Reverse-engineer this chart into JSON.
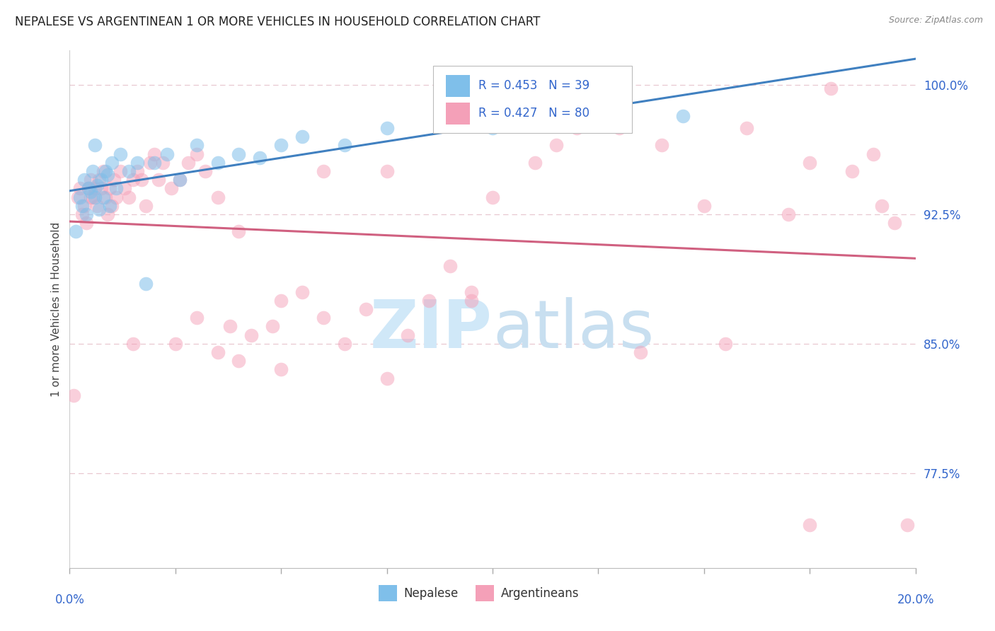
{
  "title": "NEPALESE VS ARGENTINEAN 1 OR MORE VEHICLES IN HOUSEHOLD CORRELATION CHART",
  "source": "Source: ZipAtlas.com",
  "ylabel": "1 or more Vehicles in Household",
  "xlim": [
    0.0,
    20.0
  ],
  "ylim": [
    72.0,
    102.0
  ],
  "yticks": [
    77.5,
    85.0,
    92.5,
    100.0
  ],
  "ytick_labels": [
    "77.5%",
    "85.0%",
    "92.5%",
    "100.0%"
  ],
  "nepalese_R": 0.453,
  "nepalese_N": 39,
  "argentinean_R": 0.427,
  "argentinean_N": 80,
  "nepalese_color": "#7fbfea",
  "argentinean_color": "#f4a0b8",
  "nepalese_line_color": "#4080c0",
  "argentinean_line_color": "#d06080",
  "text_color": "#3366cc",
  "watermark_zip_color": "#d0e8f8",
  "watermark_atlas_color": "#c8dff0",
  "nepalese_x": [
    0.15,
    0.25,
    0.3,
    0.35,
    0.4,
    0.45,
    0.5,
    0.55,
    0.6,
    0.6,
    0.65,
    0.7,
    0.75,
    0.8,
    0.85,
    0.9,
    0.95,
    1.0,
    1.1,
    1.2,
    1.4,
    1.6,
    1.8,
    2.0,
    2.3,
    2.6,
    3.0,
    3.5,
    4.0,
    4.5,
    5.0,
    5.5,
    6.5,
    7.5,
    9.0,
    10.0,
    11.5,
    13.0,
    14.5
  ],
  "nepalese_y": [
    91.5,
    93.5,
    93.0,
    94.5,
    92.5,
    94.0,
    93.8,
    95.0,
    93.5,
    96.5,
    94.2,
    92.8,
    94.5,
    93.5,
    95.0,
    94.8,
    93.0,
    95.5,
    94.0,
    96.0,
    95.0,
    95.5,
    88.5,
    95.5,
    96.0,
    94.5,
    96.5,
    95.5,
    96.0,
    95.8,
    96.5,
    97.0,
    96.5,
    97.5,
    97.8,
    97.5,
    98.0,
    98.5,
    98.2
  ],
  "argentinean_x": [
    0.1,
    0.2,
    0.25,
    0.3,
    0.35,
    0.4,
    0.45,
    0.5,
    0.5,
    0.55,
    0.6,
    0.65,
    0.7,
    0.75,
    0.8,
    0.85,
    0.9,
    0.95,
    1.0,
    1.05,
    1.1,
    1.2,
    1.3,
    1.4,
    1.5,
    1.6,
    1.7,
    1.8,
    1.9,
    2.0,
    2.1,
    2.2,
    2.4,
    2.6,
    2.8,
    3.0,
    3.2,
    3.5,
    3.8,
    4.0,
    4.3,
    4.8,
    5.0,
    5.5,
    6.0,
    6.5,
    7.0,
    7.5,
    8.0,
    8.5,
    9.0,
    9.5,
    10.0,
    11.0,
    12.0,
    13.0,
    14.0,
    15.0,
    16.0,
    17.0,
    17.5,
    18.0,
    18.5,
    19.0,
    19.2,
    19.5,
    1.5,
    2.5,
    3.0,
    3.5,
    4.0,
    5.0,
    6.0,
    7.5,
    9.5,
    11.5,
    13.5,
    15.5,
    17.5,
    19.8
  ],
  "argentinean_y": [
    82.0,
    93.5,
    94.0,
    92.5,
    93.0,
    92.0,
    94.0,
    93.5,
    94.5,
    93.5,
    94.0,
    93.0,
    94.5,
    94.0,
    95.0,
    93.5,
    92.5,
    94.0,
    93.0,
    94.5,
    93.5,
    95.0,
    94.0,
    93.5,
    94.5,
    95.0,
    94.5,
    93.0,
    95.5,
    96.0,
    94.5,
    95.5,
    94.0,
    94.5,
    95.5,
    96.0,
    95.0,
    93.5,
    86.0,
    91.5,
    85.5,
    86.0,
    87.5,
    88.0,
    95.0,
    85.0,
    87.0,
    95.0,
    85.5,
    87.5,
    89.5,
    88.0,
    93.5,
    95.5,
    97.5,
    97.5,
    96.5,
    93.0,
    97.5,
    92.5,
    95.5,
    99.8,
    95.0,
    96.0,
    93.0,
    92.0,
    85.0,
    85.0,
    86.5,
    84.5,
    84.0,
    83.5,
    86.5,
    83.0,
    87.5,
    96.5,
    84.5,
    85.0,
    74.5,
    74.5
  ]
}
